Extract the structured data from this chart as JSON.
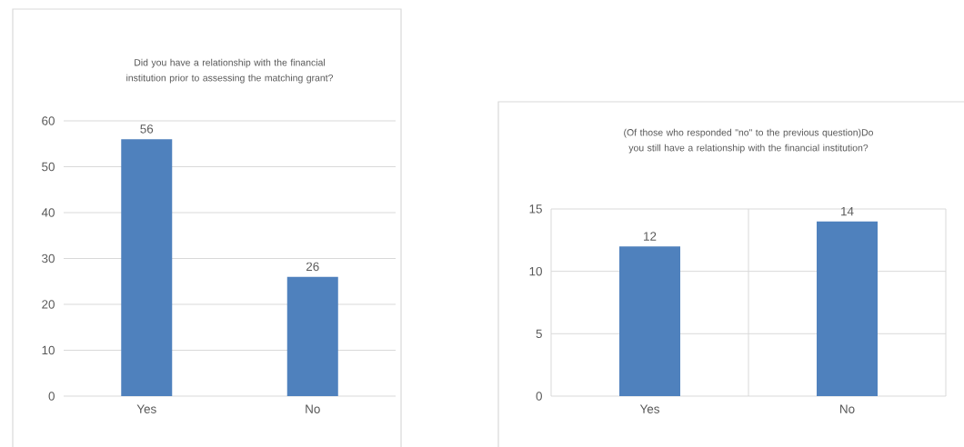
{
  "chart_data": [
    {
      "type": "bar",
      "title": "Did you have a relationship with the financial institution prior to assessing the matching grant?",
      "categories": [
        "Yes",
        "No"
      ],
      "values": [
        56,
        26
      ],
      "color": "#4f81bd",
      "ylim": [
        0,
        60
      ],
      "yticks": [
        0,
        10,
        20,
        30,
        40,
        50,
        60
      ],
      "grid": "y",
      "data_labels": true
    },
    {
      "type": "bar",
      "title": "(Of those who responded \"no\" to the previous question)Do you still have a relationship with the financial institution?",
      "categories": [
        "Yes",
        "No"
      ],
      "values": [
        12,
        14
      ],
      "color": "#4f81bd",
      "ylim": [
        0,
        15
      ],
      "yticks": [
        0,
        5,
        10,
        15
      ],
      "grid": true,
      "data_labels": true
    }
  ]
}
